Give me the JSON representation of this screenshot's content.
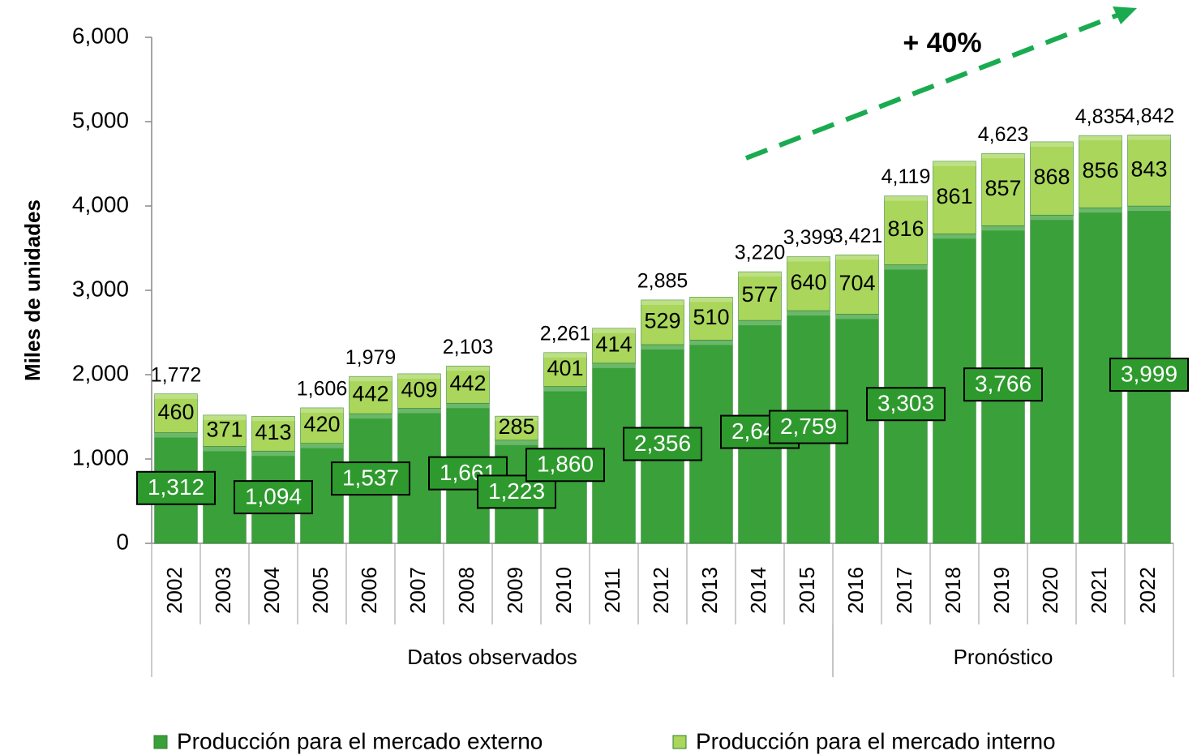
{
  "chart_data": {
    "type": "bar",
    "stacked": true,
    "y_label": "Miles de unidades",
    "annotation": "+ 40%",
    "categories": [
      "2002",
      "2003",
      "2004",
      "2005",
      "2006",
      "2007",
      "2008",
      "2009",
      "2010",
      "2011",
      "2012",
      "2013",
      "2014",
      "2015",
      "2016",
      "2017",
      "2018",
      "2019",
      "2020",
      "2021",
      "2022"
    ],
    "groups": [
      {
        "label": "Datos observados",
        "from": "2002",
        "to": "2015"
      },
      {
        "label": "Pronóstico",
        "from": "2016",
        "to": "2022"
      }
    ],
    "series": [
      {
        "name": "Producción para el mercado externo",
        "color": "#3aa03a",
        "boxed_labels": true,
        "values": [
          1312,
          1149,
          1094,
          1186,
          1537,
          1601,
          1661,
          1223,
          1860,
          2136,
          2356,
          2410,
          2643,
          2759,
          2717,
          3303,
          3669,
          3766,
          3892,
          3979,
          3999
        ],
        "value_labels": [
          "1,312",
          null,
          "1,094",
          null,
          "1,537",
          null,
          "1,661",
          "1,223",
          "1,860",
          null,
          "2,356",
          null,
          "2,643",
          "2,759",
          null,
          "3,303",
          null,
          "3,766",
          null,
          null,
          "3,999"
        ]
      },
      {
        "name": "Producción para el mercado interno",
        "color": "#a9d65b",
        "boxed_labels": false,
        "values": [
          460,
          371,
          413,
          420,
          442,
          409,
          442,
          285,
          401,
          414,
          529,
          510,
          577,
          640,
          704,
          816,
          861,
          857,
          868,
          856,
          843
        ]
      }
    ],
    "totals": [
      1772,
      null,
      null,
      1606,
      1979,
      null,
      2103,
      null,
      2261,
      null,
      2885,
      null,
      3220,
      3399,
      3421,
      4119,
      null,
      4623,
      null,
      4835,
      4842
    ],
    "total_labels": [
      "1,772",
      null,
      null,
      "1,606",
      "1,979",
      null,
      "2,103",
      null,
      "2,261",
      null,
      "2,885",
      null,
      "3,220",
      "3,399",
      "3,421",
      "4,119",
      null,
      "4,623",
      null,
      "4,835",
      "4,842"
    ],
    "ylim": [
      0,
      6000
    ],
    "yticks": [
      0,
      {
        "value": 1000,
        "label": "1,000"
      },
      {
        "value": 2000,
        "label": "2,000"
      },
      {
        "value": 3000,
        "label": "3,000"
      },
      {
        "value": 4000,
        "label": "4,000"
      },
      {
        "value": 5000,
        "label": "5,000"
      },
      {
        "value": 6000,
        "label": "6,000"
      }
    ],
    "legend": "bottom"
  }
}
